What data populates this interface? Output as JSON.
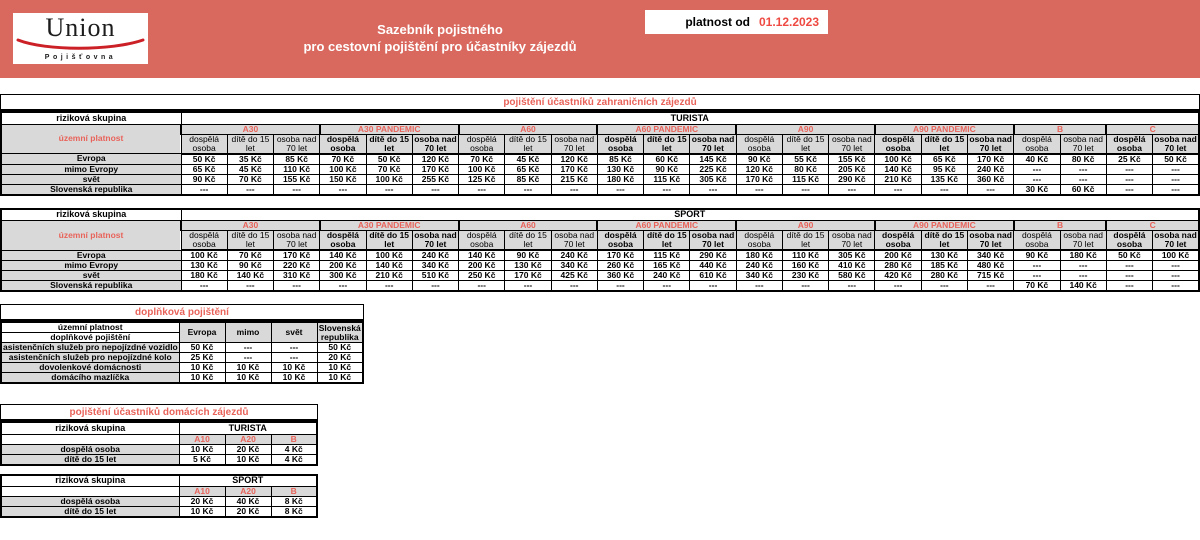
{
  "colors": {
    "banner_bg": "#d9695e",
    "accent_red": "#e8635a",
    "date_red": "#ee4a42",
    "cell_grey": "#d9d9d9"
  },
  "banner": {
    "logo_name": "Union",
    "logo_subtitle": "Pojišťovna",
    "title_line1": "Sazebník pojistného",
    "title_line2": "pro cestovní pojištění pro účastníky zájezdů",
    "validity_label": "platnost od",
    "validity_date": "01.12.2023"
  },
  "foreign": {
    "title": "pojištění účastníků zahraničních zájezdů",
    "risk_group_label": "riziková skupina",
    "territory_label": "územní platnost",
    "person_cols_3": [
      "dospělá osoba",
      "dítě do 15 let",
      "osoba nad 70 let"
    ],
    "person_cols_2": [
      "dospělá osoba",
      "osoba nad 70 let"
    ],
    "groups": [
      {
        "code": "A30",
        "cols": 3,
        "bold": false
      },
      {
        "code": "A30 PANDEMIC",
        "cols": 3,
        "bold": true
      },
      {
        "code": "A60",
        "cols": 3,
        "bold": false
      },
      {
        "code": "A60 PANDEMIC",
        "cols": 3,
        "bold": true
      },
      {
        "code": "A90",
        "cols": 3,
        "bold": false
      },
      {
        "code": "A90 PANDEMIC",
        "cols": 3,
        "bold": true
      },
      {
        "code": "B",
        "cols": 2,
        "bold": false
      },
      {
        "code": "C",
        "cols": 2,
        "bold": true
      }
    ],
    "tables": [
      {
        "risk_group": "TURISTA",
        "rows": [
          {
            "label": "Evropa",
            "values": [
              "50 Kč",
              "35 Kč",
              "85 Kč",
              "70 Kč",
              "50 Kč",
              "120 Kč",
              "70 Kč",
              "45 Kč",
              "120 Kč",
              "85 Kč",
              "60 Kč",
              "145 Kč",
              "90 Kč",
              "55 Kč",
              "155 Kč",
              "100 Kč",
              "65 Kč",
              "170 Kč",
              "40 Kč",
              "80 Kč",
              "25 Kč",
              "50 Kč"
            ]
          },
          {
            "label": "mimo Evropy",
            "values": [
              "65 Kč",
              "45 Kč",
              "110 Kč",
              "100 Kč",
              "70 Kč",
              "170 Kč",
              "100 Kč",
              "65 Kč",
              "170 Kč",
              "130 Kč",
              "90 Kč",
              "225 Kč",
              "120 Kč",
              "80 Kč",
              "205 Kč",
              "140 Kč",
              "95 Kč",
              "240 Kč",
              "---",
              "---",
              "---",
              "---"
            ]
          },
          {
            "label": "svět",
            "values": [
              "90 Kč",
              "70 Kč",
              "155 Kč",
              "150 Kč",
              "100 Kč",
              "255 Kč",
              "125 Kč",
              "85 Kč",
              "215 Kč",
              "180 Kč",
              "115 Kč",
              "305 Kč",
              "170 Kč",
              "115 Kč",
              "290 Kč",
              "210 Kč",
              "135 Kč",
              "360 Kč",
              "---",
              "---",
              "---",
              "---"
            ]
          },
          {
            "label": "Slovenská republika",
            "values": [
              "---",
              "---",
              "---",
              "---",
              "---",
              "---",
              "---",
              "---",
              "---",
              "---",
              "---",
              "---",
              "---",
              "---",
              "---",
              "---",
              "---",
              "---",
              "30 Kč",
              "60 Kč",
              "---",
              "---"
            ]
          }
        ]
      },
      {
        "risk_group": "SPORT",
        "rows": [
          {
            "label": "Evropa",
            "values": [
              "100 Kč",
              "70 Kč",
              "170 Kč",
              "140 Kč",
              "100 Kč",
              "240 Kč",
              "140 Kč",
              "90 Kč",
              "240 Kč",
              "170 Kč",
              "115 Kč",
              "290 Kč",
              "180 Kč",
              "110 Kč",
              "305 Kč",
              "200 Kč",
              "130 Kč",
              "340 Kč",
              "90 Kč",
              "180 Kč",
              "50 Kč",
              "100 Kč"
            ]
          },
          {
            "label": "mimo Evropy",
            "values": [
              "130 Kč",
              "90 Kč",
              "220 Kč",
              "200 Kč",
              "140 Kč",
              "340 Kč",
              "200 Kč",
              "130 Kč",
              "340 Kč",
              "260 Kč",
              "165 Kč",
              "440 Kč",
              "240 Kč",
              "160 Kč",
              "410 Kč",
              "280 Kč",
              "185 Kč",
              "480 Kč",
              "---",
              "---",
              "---",
              "---"
            ]
          },
          {
            "label": "svět",
            "values": [
              "180 Kč",
              "140 Kč",
              "310 Kč",
              "300 Kč",
              "210 Kč",
              "510 Kč",
              "250 Kč",
              "170 Kč",
              "425 Kč",
              "360 Kč",
              "240 Kč",
              "610 Kč",
              "340 Kč",
              "230 Kč",
              "580 Kč",
              "420 Kč",
              "280 Kč",
              "715 Kč",
              "---",
              "---",
              "---",
              "---"
            ]
          },
          {
            "label": "Slovenská republika",
            "values": [
              "---",
              "---",
              "---",
              "---",
              "---",
              "---",
              "---",
              "---",
              "---",
              "---",
              "---",
              "---",
              "---",
              "---",
              "---",
              "---",
              "---",
              "---",
              "70 Kč",
              "140 Kč",
              "---",
              "---"
            ]
          }
        ]
      }
    ]
  },
  "supplementary": {
    "title": "doplňková pojištění",
    "territory_label": "územní platnost",
    "row_header_label": "doplňkové pojištění",
    "columns": [
      "Evropa",
      "mimo",
      "svět",
      "Slovenská republika"
    ],
    "rows": [
      {
        "label": "asistenčních služeb pro nepojízdné vozidlo",
        "values": [
          "50 Kč",
          "---",
          "---",
          "50 Kč"
        ]
      },
      {
        "label": "asistenčních služeb pro nepojízdné kolo",
        "values": [
          "25 Kč",
          "---",
          "---",
          "20 Kč"
        ]
      },
      {
        "label": "dovolenkové domácnosti",
        "values": [
          "10 Kč",
          "10 Kč",
          "10 Kč",
          "10 Kč"
        ]
      },
      {
        "label": "domácího mazlíčka",
        "values": [
          "10 Kč",
          "10 Kč",
          "10 Kč",
          "10 Kč"
        ]
      }
    ]
  },
  "domestic": {
    "title": "pojištění účastníků domácích zájezdů",
    "risk_group_label": "riziková skupina",
    "columns": [
      "A10",
      "A20",
      "B"
    ],
    "tables": [
      {
        "risk_group": "TURISTA",
        "rows": [
          {
            "label": "dospělá osoba",
            "values": [
              "10 Kč",
              "20 Kč",
              "4 Kč"
            ]
          },
          {
            "label": "dítě do 15 let",
            "values": [
              "5 Kč",
              "10 Kč",
              "4 Kč"
            ]
          }
        ]
      },
      {
        "risk_group": "SPORT",
        "rows": [
          {
            "label": "dospělá osoba",
            "values": [
              "20 Kč",
              "40 Kč",
              "8 Kč"
            ]
          },
          {
            "label": "dítě do 15 let",
            "values": [
              "10 Kč",
              "20 Kč",
              "8 Kč"
            ]
          }
        ]
      }
    ]
  }
}
